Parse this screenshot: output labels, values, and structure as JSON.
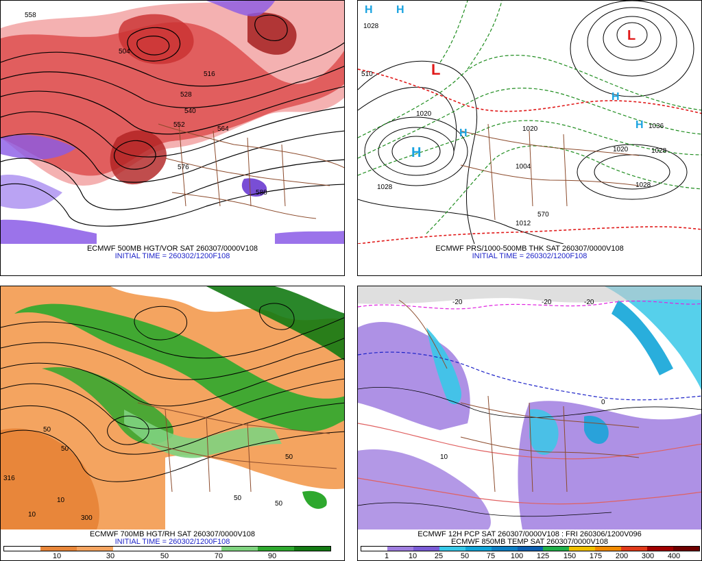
{
  "panels": {
    "top_left": {
      "caption": "ECMWF 500MB HGT/VOR SAT 260307/0000V108",
      "init": "INITIAL TIME = 260302/1200F108",
      "contour_labels": [
        "504",
        "516",
        "528",
        "540",
        "552",
        "564",
        "576",
        "588",
        "558"
      ]
    },
    "top_right": {
      "caption": "ECMWF PRS/1000-500MB THK SAT 260307/0000V108",
      "init": "INITIAL TIME = 260302/1200F108",
      "highs": [
        "H",
        "H",
        "H",
        "H",
        "H",
        "H"
      ],
      "lows": [
        "L",
        "L"
      ],
      "contour_labels": [
        "1028",
        "1020",
        "1028",
        "1020",
        "1028",
        "1028",
        "1036",
        "1004",
        "1012",
        "570",
        "510",
        "1020"
      ]
    },
    "bottom_left": {
      "caption": "ECMWF 700MB HGT/RH SAT 260307/0000V108",
      "init": "INITIAL TIME = 260302/1200F108",
      "colorbar_labels": [
        "10",
        "30",
        "50",
        "70",
        "90"
      ],
      "contour_labels": [
        "50",
        "50",
        "10",
        "10",
        "50",
        "316",
        "300",
        "50",
        "50"
      ]
    },
    "bottom_right": {
      "caption1": "ECMWF 12H PCP SAT 260307/0000V108 : FRI 260306/1200V096",
      "caption2": "ECMWF 850MB TEMP SAT 260307/0000V108",
      "colorbar_labels": [
        "1",
        "10",
        "25",
        "50",
        "75",
        "100",
        "125",
        "150",
        "175",
        "200",
        "300",
        "400"
      ],
      "contour_labels": [
        "-20",
        "-20",
        "-20",
        "0",
        "10"
      ]
    }
  },
  "colors": {
    "rh_colorbar": [
      "#ffffff",
      "#e8863a",
      "#f4a460",
      "#ffffff",
      "#ffffff",
      "#ffffff",
      "#7fd37f",
      "#2ea82e",
      "#137a13"
    ],
    "pcp_colorbar": [
      "#ffffff",
      "#a07ee0",
      "#7b5cd6",
      "#38c8e8",
      "#12a5d8",
      "#0d7fc4",
      "#0b5fb0",
      "#21b04a",
      "#f0c000",
      "#f08a00",
      "#e03a1a",
      "#a00000",
      "#6e0000"
    ],
    "vorticity_red": "#d23030",
    "vorticity_purple": "#8a5ae6",
    "highs_blue": "#19a3e0",
    "lows_red": "#e01818",
    "borders_brown": "#8b4a2b"
  }
}
